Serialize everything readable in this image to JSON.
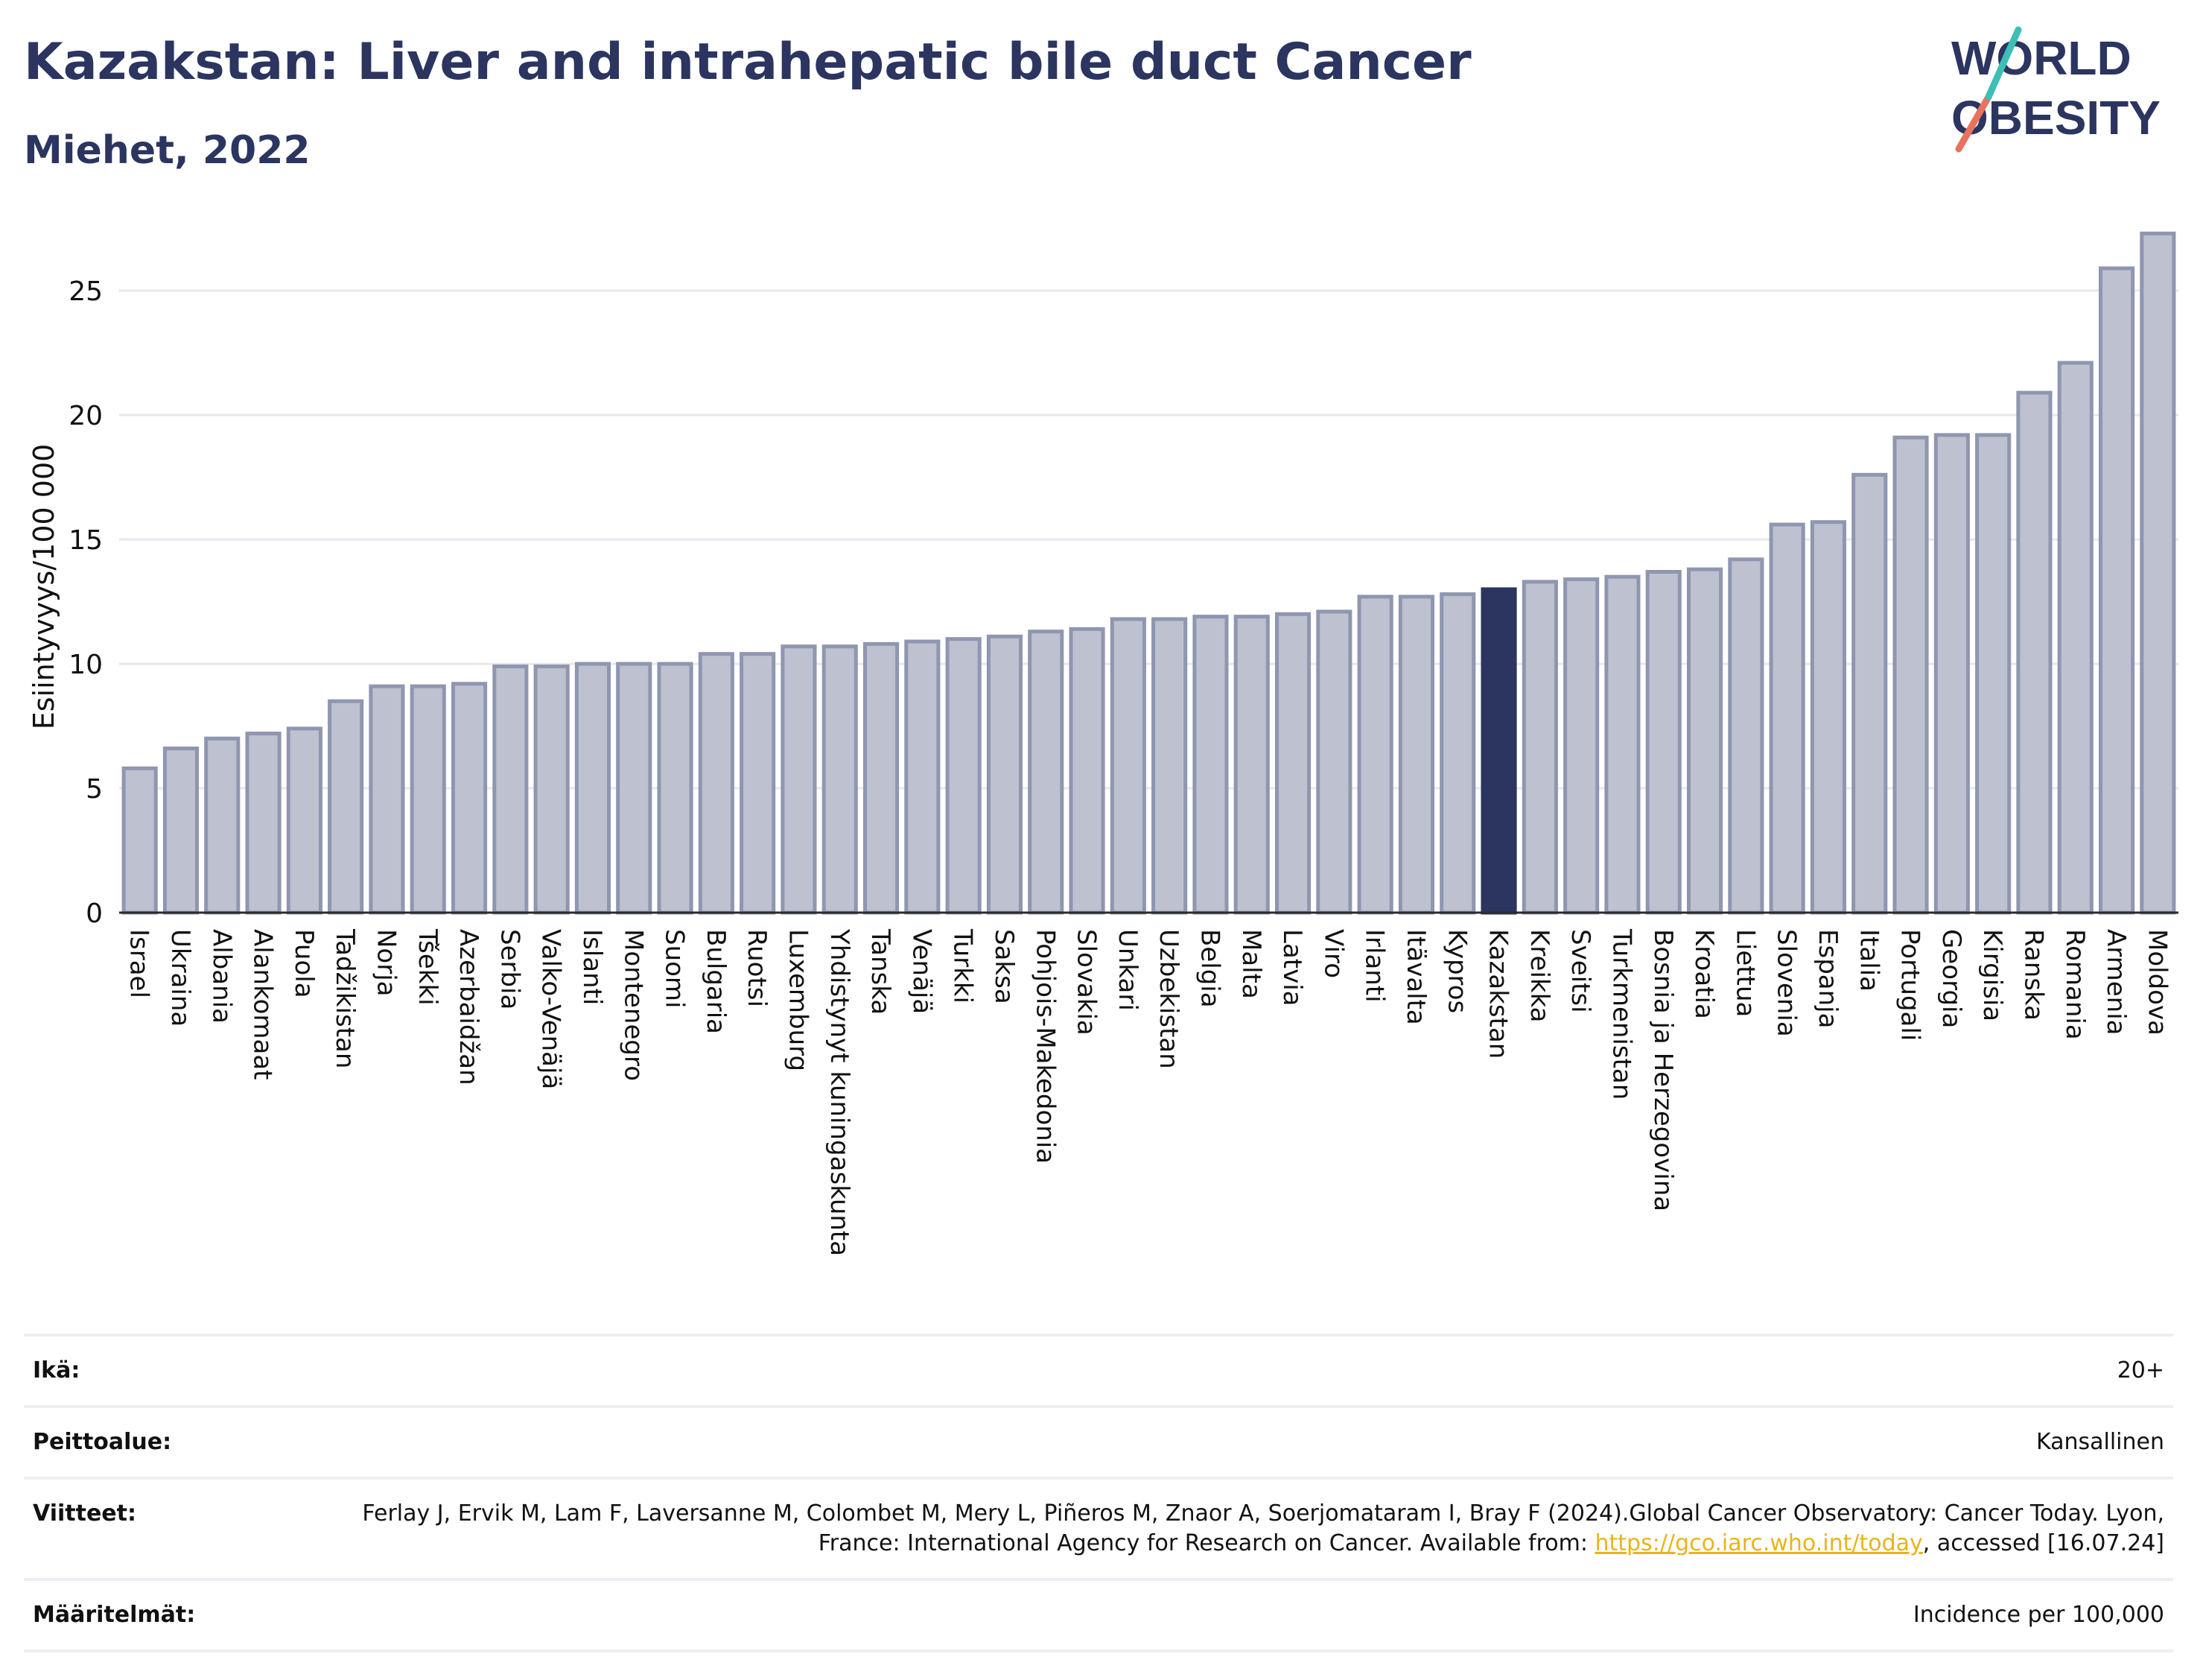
{
  "header": {
    "title": "Kazakstan: Liver and intrahepatic bile duct Cancer",
    "subtitle": "Miehet, 2022"
  },
  "logo": {
    "line1": "WORLD",
    "line2": "OBESITY"
  },
  "chart_data": {
    "type": "bar",
    "title": "Kazakstan: Liver and intrahepatic bile duct Cancer",
    "subtitle": "Miehet, 2022",
    "xlabel": "",
    "ylabel": "Esiintyvyys/100 000",
    "ylim": [
      0,
      28
    ],
    "yticks": [
      0,
      5,
      10,
      15,
      20,
      25
    ],
    "grid": true,
    "highlight": "Kazakstan",
    "colors": {
      "bar": "#bdc1d0",
      "bar_edge": "#8f96b0",
      "highlight": "#2b3560"
    },
    "categories": [
      "Israel",
      "Ukraina",
      "Albania",
      "Alankomaat",
      "Puola",
      "Tadžikistan",
      "Norja",
      "Tšekki",
      "Azerbaidžan",
      "Serbia",
      "Valko-Venäjä",
      "Islanti",
      "Montenegro",
      "Suomi",
      "Bulgaria",
      "Ruotsi",
      "Luxemburg",
      "Yhdistynyt kuningaskunta",
      "Tanska",
      "Venäjä",
      "Turkki",
      "Saksa",
      "Pohjois-Makedonia",
      "Slovakia",
      "Unkari",
      "Uzbekistan",
      "Belgia",
      "Malta",
      "Latvia",
      "Viro",
      "Irlanti",
      "Itävalta",
      "Kypros",
      "Kazakstan",
      "Kreikka",
      "Sveitsi",
      "Turkmenistan",
      "Bosnia ja Herzegovina",
      "Kroatia",
      "Liettua",
      "Slovenia",
      "Espanja",
      "Italia",
      "Portugali",
      "Georgia",
      "Kirgisia",
      "Ranska",
      "Romania",
      "Armenia",
      "Moldova"
    ],
    "values": [
      5.8,
      6.6,
      7.0,
      7.2,
      7.4,
      8.5,
      9.1,
      9.1,
      9.2,
      9.9,
      9.9,
      10.0,
      10.0,
      10.0,
      10.4,
      10.4,
      10.7,
      10.7,
      10.8,
      10.9,
      11.0,
      11.1,
      11.3,
      11.4,
      11.8,
      11.8,
      11.9,
      11.9,
      12.0,
      12.1,
      12.7,
      12.7,
      12.8,
      13.0,
      13.3,
      13.4,
      13.5,
      13.7,
      13.8,
      14.2,
      15.6,
      15.7,
      17.6,
      19.1,
      19.2,
      19.2,
      20.9,
      22.1,
      25.9,
      27.3
    ]
  },
  "meta": {
    "rows": [
      {
        "label": "Ikä:",
        "value": "20+"
      },
      {
        "label": "Peittoalue:",
        "value": "Kansallinen"
      },
      {
        "label": "Viitteet:",
        "value_part1": "Ferlay J, Ervik M, Lam F, Laversanne M, Colombet M, Mery L, Piñeros M, Znaor A, Soerjomataram I, Bray F (2024).Global Cancer Observatory: Cancer Today. Lyon, France: International Agency for Research on Cancer. Available from: ",
        "link": "https://gco.iarc.who.int/today",
        "value_part2": ", accessed [16.07.24]"
      },
      {
        "label": "Määritelmät:",
        "value": "Incidence per 100,000"
      }
    ]
  }
}
